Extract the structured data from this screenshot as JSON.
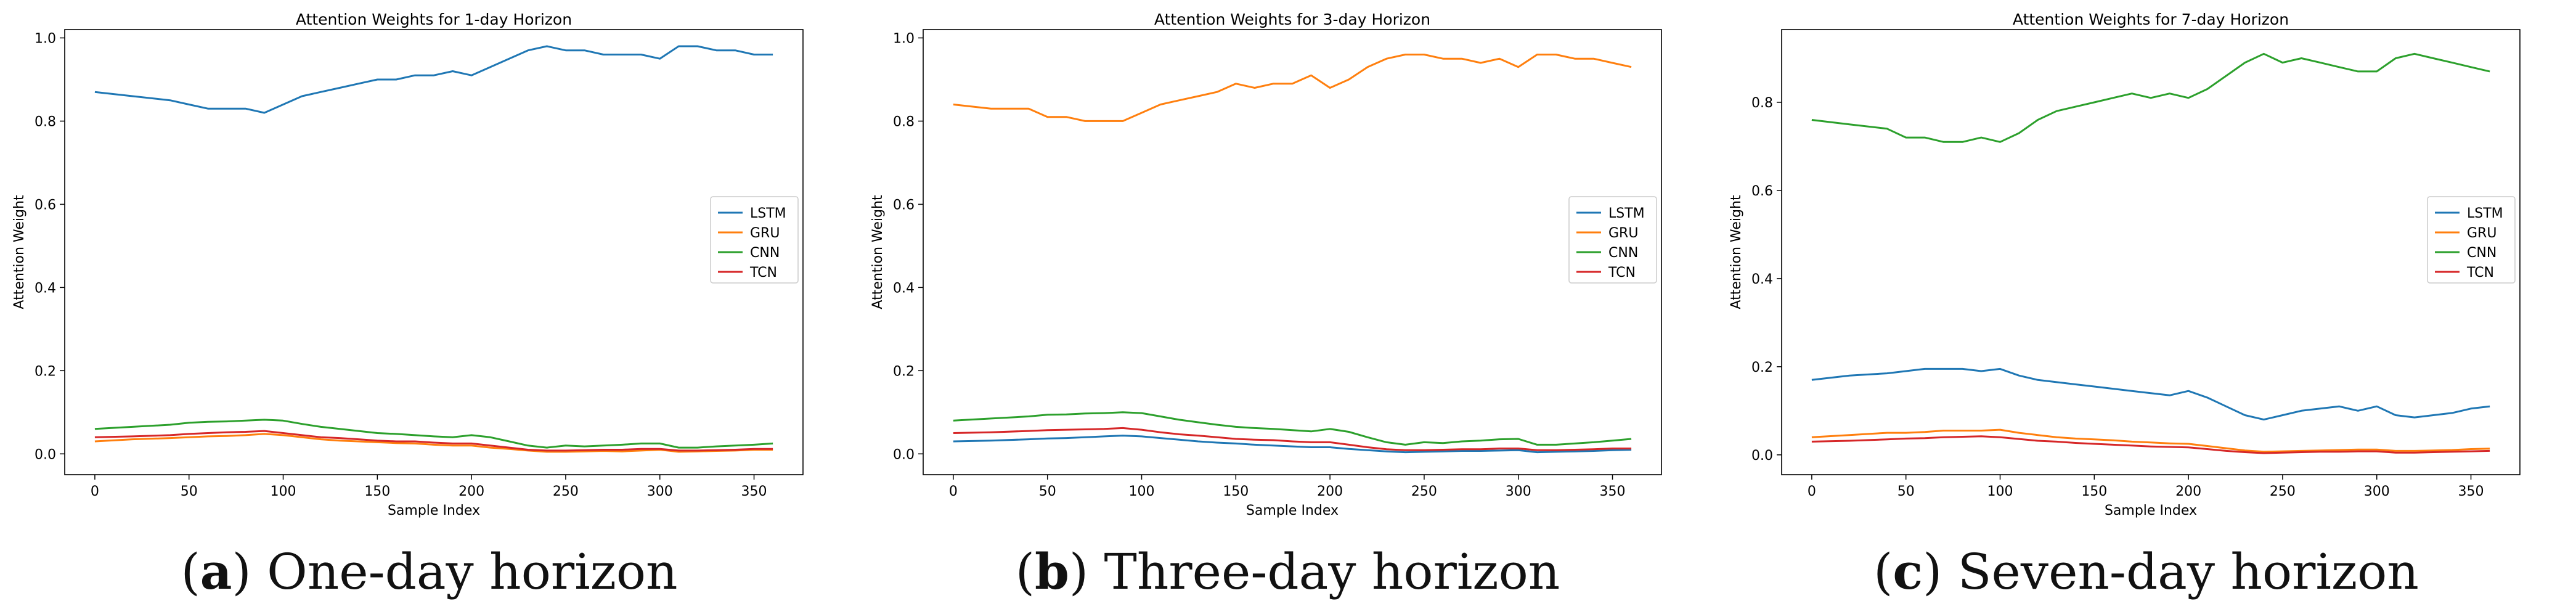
{
  "chart_data": [
    {
      "type": "line",
      "title": "Attention Weights for 1-day Horizon",
      "xlabel": "Sample Index",
      "ylabel": "Attention Weight",
      "xlim": [
        -16,
        376
      ],
      "ylim": [
        -0.05,
        1.02
      ],
      "xticks": [
        0,
        50,
        100,
        150,
        200,
        250,
        300,
        350
      ],
      "yticks": [
        0.0,
        0.2,
        0.4,
        0.6,
        0.8,
        1.0
      ],
      "ytick_labels": [
        "0.0",
        "0.2",
        "0.4",
        "0.6",
        "0.8",
        "1.0"
      ],
      "legend_position": "center-right",
      "x": [
        0,
        20,
        40,
        50,
        60,
        70,
        80,
        90,
        100,
        110,
        120,
        130,
        140,
        150,
        160,
        170,
        180,
        190,
        200,
        210,
        220,
        230,
        240,
        250,
        260,
        270,
        280,
        290,
        300,
        310,
        320,
        330,
        340,
        350,
        360
      ],
      "series": [
        {
          "name": "LSTM",
          "color": "#1f77b4",
          "values": [
            0.87,
            0.86,
            0.85,
            0.84,
            0.83,
            0.83,
            0.83,
            0.82,
            0.84,
            0.86,
            0.87,
            0.88,
            0.89,
            0.9,
            0.9,
            0.91,
            0.91,
            0.92,
            0.91,
            0.93,
            0.95,
            0.97,
            0.98,
            0.97,
            0.97,
            0.96,
            0.96,
            0.96,
            0.95,
            0.98,
            0.98,
            0.97,
            0.97,
            0.96,
            0.96
          ]
        },
        {
          "name": "GRU",
          "color": "#ff7f0e",
          "values": [
            0.03,
            0.035,
            0.038,
            0.04,
            0.042,
            0.043,
            0.045,
            0.048,
            0.045,
            0.04,
            0.035,
            0.032,
            0.03,
            0.028,
            0.026,
            0.025,
            0.022,
            0.02,
            0.02,
            0.015,
            0.012,
            0.008,
            0.005,
            0.005,
            0.006,
            0.007,
            0.006,
            0.008,
            0.01,
            0.005,
            0.006,
            0.007,
            0.008,
            0.01,
            0.01
          ]
        },
        {
          "name": "CNN",
          "color": "#2ca02c",
          "values": [
            0.06,
            0.065,
            0.07,
            0.075,
            0.077,
            0.078,
            0.08,
            0.082,
            0.08,
            0.072,
            0.065,
            0.06,
            0.055,
            0.05,
            0.048,
            0.045,
            0.042,
            0.04,
            0.045,
            0.04,
            0.03,
            0.02,
            0.015,
            0.02,
            0.018,
            0.02,
            0.022,
            0.025,
            0.025,
            0.015,
            0.015,
            0.018,
            0.02,
            0.022,
            0.025
          ]
        },
        {
          "name": "TCN",
          "color": "#d62728",
          "values": [
            0.04,
            0.042,
            0.045,
            0.048,
            0.05,
            0.052,
            0.053,
            0.055,
            0.05,
            0.045,
            0.04,
            0.038,
            0.035,
            0.032,
            0.03,
            0.03,
            0.027,
            0.025,
            0.025,
            0.02,
            0.015,
            0.01,
            0.008,
            0.008,
            0.009,
            0.01,
            0.01,
            0.012,
            0.012,
            0.008,
            0.008,
            0.009,
            0.01,
            0.012,
            0.012
          ]
        }
      ]
    },
    {
      "type": "line",
      "title": "Attention Weights for 3-day Horizon",
      "xlabel": "Sample Index",
      "ylabel": "Attention Weight",
      "xlim": [
        -16,
        376
      ],
      "ylim": [
        -0.05,
        1.02
      ],
      "xticks": [
        0,
        50,
        100,
        150,
        200,
        250,
        300,
        350
      ],
      "yticks": [
        0.0,
        0.2,
        0.4,
        0.6,
        0.8,
        1.0
      ],
      "ytick_labels": [
        "0.0",
        "0.2",
        "0.4",
        "0.6",
        "0.8",
        "1.0"
      ],
      "legend_position": "center-right",
      "x": [
        0,
        20,
        40,
        50,
        60,
        70,
        80,
        90,
        100,
        110,
        120,
        130,
        140,
        150,
        160,
        170,
        180,
        190,
        200,
        210,
        220,
        230,
        240,
        250,
        260,
        270,
        280,
        290,
        300,
        310,
        320,
        330,
        340,
        350,
        360
      ],
      "series": [
        {
          "name": "LSTM",
          "color": "#1f77b4",
          "values": [
            0.03,
            0.032,
            0.035,
            0.037,
            0.038,
            0.04,
            0.042,
            0.044,
            0.042,
            0.038,
            0.034,
            0.03,
            0.027,
            0.025,
            0.022,
            0.02,
            0.018,
            0.016,
            0.016,
            0.012,
            0.009,
            0.006,
            0.004,
            0.005,
            0.006,
            0.007,
            0.007,
            0.008,
            0.009,
            0.004,
            0.005,
            0.006,
            0.007,
            0.009,
            0.01
          ]
        },
        {
          "name": "GRU",
          "color": "#ff7f0e",
          "values": [
            0.84,
            0.83,
            0.83,
            0.81,
            0.81,
            0.8,
            0.8,
            0.8,
            0.82,
            0.84,
            0.85,
            0.86,
            0.87,
            0.89,
            0.88,
            0.89,
            0.89,
            0.91,
            0.88,
            0.9,
            0.93,
            0.95,
            0.96,
            0.96,
            0.95,
            0.95,
            0.94,
            0.95,
            0.93,
            0.96,
            0.96,
            0.95,
            0.95,
            0.94,
            0.93
          ]
        },
        {
          "name": "CNN",
          "color": "#2ca02c",
          "values": [
            0.08,
            0.085,
            0.09,
            0.094,
            0.095,
            0.097,
            0.098,
            0.1,
            0.098,
            0.09,
            0.082,
            0.076,
            0.07,
            0.065,
            0.062,
            0.06,
            0.057,
            0.054,
            0.06,
            0.053,
            0.04,
            0.028,
            0.022,
            0.028,
            0.026,
            0.03,
            0.032,
            0.035,
            0.036,
            0.022,
            0.022,
            0.025,
            0.028,
            0.032,
            0.036
          ]
        },
        {
          "name": "TCN",
          "color": "#d62728",
          "values": [
            0.05,
            0.052,
            0.055,
            0.057,
            0.058,
            0.059,
            0.06,
            0.062,
            0.058,
            0.052,
            0.047,
            0.044,
            0.04,
            0.036,
            0.034,
            0.033,
            0.03,
            0.028,
            0.028,
            0.022,
            0.016,
            0.011,
            0.009,
            0.009,
            0.01,
            0.011,
            0.011,
            0.013,
            0.013,
            0.009,
            0.009,
            0.01,
            0.011,
            0.013,
            0.013
          ]
        }
      ]
    },
    {
      "type": "line",
      "title": "Attention Weights for 7-day Horizon",
      "xlabel": "Sample Index",
      "ylabel": "Attention Weight",
      "xlim": [
        -16,
        376
      ],
      "ylim": [
        -0.045,
        0.965
      ],
      "xticks": [
        0,
        50,
        100,
        150,
        200,
        250,
        300,
        350
      ],
      "yticks": [
        0.0,
        0.2,
        0.4,
        0.6,
        0.8
      ],
      "ytick_labels": [
        "0.0",
        "0.2",
        "0.4",
        "0.6",
        "0.8"
      ],
      "legend_position": "center-right",
      "x": [
        0,
        20,
        40,
        50,
        60,
        70,
        80,
        90,
        100,
        110,
        120,
        130,
        140,
        150,
        160,
        170,
        180,
        190,
        200,
        210,
        220,
        230,
        240,
        250,
        260,
        270,
        280,
        290,
        300,
        310,
        320,
        330,
        340,
        350,
        360
      ],
      "series": [
        {
          "name": "LSTM",
          "color": "#1f77b4",
          "values": [
            0.17,
            0.18,
            0.185,
            0.19,
            0.195,
            0.195,
            0.195,
            0.19,
            0.195,
            0.18,
            0.17,
            0.165,
            0.16,
            0.155,
            0.15,
            0.145,
            0.14,
            0.135,
            0.145,
            0.13,
            0.11,
            0.09,
            0.08,
            0.09,
            0.1,
            0.105,
            0.11,
            0.1,
            0.11,
            0.09,
            0.085,
            0.09,
            0.095,
            0.105,
            0.11
          ]
        },
        {
          "name": "GRU",
          "color": "#ff7f0e",
          "values": [
            0.04,
            0.045,
            0.05,
            0.05,
            0.052,
            0.055,
            0.055,
            0.055,
            0.057,
            0.05,
            0.045,
            0.04,
            0.037,
            0.035,
            0.033,
            0.03,
            0.028,
            0.026,
            0.025,
            0.02,
            0.015,
            0.01,
            0.007,
            0.008,
            0.009,
            0.01,
            0.011,
            0.012,
            0.012,
            0.009,
            0.009,
            0.01,
            0.011,
            0.013,
            0.014
          ]
        },
        {
          "name": "CNN",
          "color": "#2ca02c",
          "values": [
            0.76,
            0.75,
            0.74,
            0.72,
            0.72,
            0.71,
            0.71,
            0.72,
            0.71,
            0.73,
            0.76,
            0.78,
            0.79,
            0.8,
            0.81,
            0.82,
            0.81,
            0.82,
            0.81,
            0.83,
            0.86,
            0.89,
            0.91,
            0.89,
            0.9,
            0.89,
            0.88,
            0.87,
            0.87,
            0.9,
            0.91,
            0.9,
            0.89,
            0.88,
            0.87
          ]
        },
        {
          "name": "TCN",
          "color": "#d62728",
          "values": [
            0.03,
            0.032,
            0.035,
            0.037,
            0.038,
            0.04,
            0.041,
            0.042,
            0.04,
            0.036,
            0.032,
            0.03,
            0.027,
            0.025,
            0.023,
            0.021,
            0.019,
            0.018,
            0.017,
            0.013,
            0.009,
            0.006,
            0.004,
            0.005,
            0.006,
            0.007,
            0.007,
            0.008,
            0.008,
            0.005,
            0.005,
            0.006,
            0.007,
            0.008,
            0.009
          ]
        }
      ]
    }
  ],
  "captions": [
    {
      "letter": "a",
      "text": "One-day horizon"
    },
    {
      "letter": "b",
      "text": "Three-day horizon"
    },
    {
      "letter": "c",
      "text": "Seven-day horizon"
    }
  ]
}
